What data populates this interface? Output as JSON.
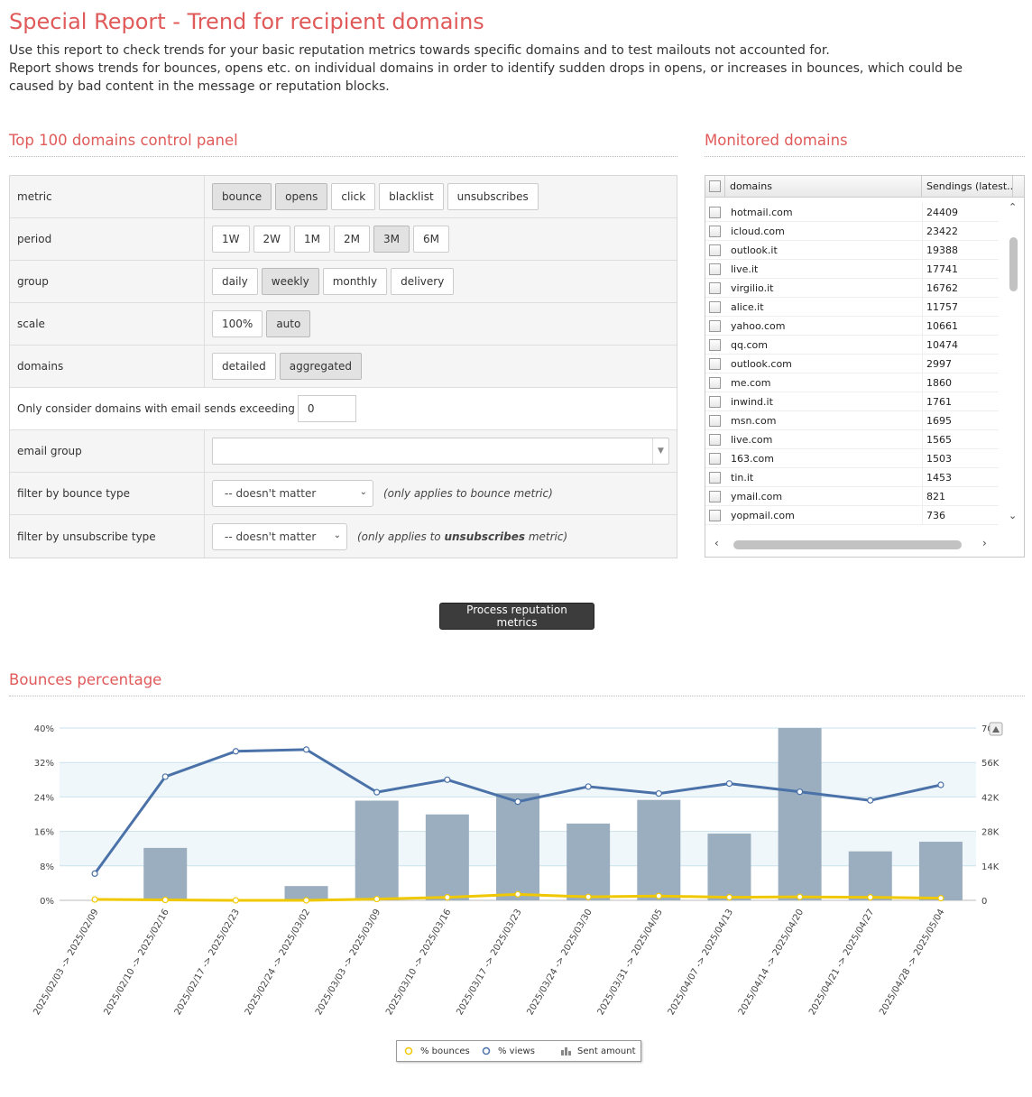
{
  "page": {
    "title": "Special Report - Trend for recipient domains",
    "intro_line1": "Use this report to check trends for your basic reputation metrics towards specific domains and to test mailouts not accounted for.",
    "intro_line2": "Report shows trends for bounces, opens etc. on individual domains in order to identify sudden drops in opens, or increases in bounces, which could be caused by bad content in the message or reputation blocks."
  },
  "control_panel": {
    "heading": "Top 100 domains control panel",
    "rows": {
      "metric": {
        "label": "metric",
        "options": [
          "bounce",
          "opens",
          "click",
          "blacklist",
          "unsubscribes"
        ],
        "active": [
          "bounce",
          "opens"
        ]
      },
      "period": {
        "label": "period",
        "options": [
          "1W",
          "2W",
          "1M",
          "2M",
          "3M",
          "6M"
        ],
        "active": [
          "3M"
        ]
      },
      "group": {
        "label": "group",
        "options": [
          "daily",
          "weekly",
          "monthly",
          "delivery"
        ],
        "active": [
          "weekly"
        ]
      },
      "scale": {
        "label": "scale",
        "options": [
          "100%",
          "auto"
        ],
        "active": [
          "auto"
        ]
      },
      "domains": {
        "label": "domains",
        "options": [
          "detailed",
          "aggregated"
        ],
        "active": [
          "aggregated"
        ]
      }
    },
    "min_sends_label": "Only consider domains with email sends exceeding",
    "min_sends_value": "0",
    "email_group_label": "email group",
    "email_group_value": "",
    "bounce_filter_label": "filter by bounce type",
    "bounce_filter_value": "-- doesn't matter",
    "bounce_hint_pre": "(only applies to",
    "bounce_hint_word": "bounce",
    "bounce_hint_post": "metric)",
    "unsub_filter_label": "filter by unsubscribe type",
    "unsub_filter_value": "-- doesn't matter",
    "unsub_hint_pre": "(only applies to",
    "unsub_hint_word": "unsubscribes",
    "unsub_hint_post": "metric)"
  },
  "monitored": {
    "heading": "Monitored domains",
    "col_domains": "domains",
    "col_sendings": "Sendings (latest...",
    "rows": [
      {
        "domain": "hotmail.com",
        "sendings": "24409"
      },
      {
        "domain": "icloud.com",
        "sendings": "23422"
      },
      {
        "domain": "outlook.it",
        "sendings": "19388"
      },
      {
        "domain": "live.it",
        "sendings": "17741"
      },
      {
        "domain": "virgilio.it",
        "sendings": "16762"
      },
      {
        "domain": "alice.it",
        "sendings": "11757"
      },
      {
        "domain": "yahoo.com",
        "sendings": "10661"
      },
      {
        "domain": "qq.com",
        "sendings": "10474"
      },
      {
        "domain": "outlook.com",
        "sendings": "2997"
      },
      {
        "domain": "me.com",
        "sendings": "1860"
      },
      {
        "domain": "inwind.it",
        "sendings": "1761"
      },
      {
        "domain": "msn.com",
        "sendings": "1695"
      },
      {
        "domain": "live.com",
        "sendings": "1565"
      },
      {
        "domain": "163.com",
        "sendings": "1503"
      },
      {
        "domain": "tin.it",
        "sendings": "1453"
      },
      {
        "domain": "ymail.com",
        "sendings": "821"
      },
      {
        "domain": "yopmail.com",
        "sendings": "736"
      }
    ]
  },
  "process_button": "Process reputation metrics",
  "chart_section": {
    "heading": "Bounces percentage"
  },
  "colors": {
    "accent": "#e05a5a",
    "views": "#4a72a8",
    "bounces": "#f0c800",
    "sent": "#9aaec0"
  },
  "chart_data": {
    "type": "bar",
    "categories": [
      "2025/02/03 -> 2025/02/09",
      "2025/02/10 -> 2025/02/16",
      "2025/02/17 -> 2025/02/23",
      "2025/02/24 -> 2025/03/02",
      "2025/03/03 -> 2025/03/09",
      "2025/03/10 -> 2025/03/16",
      "2025/03/17 -> 2025/03/23",
      "2025/03/24 -> 2025/03/30",
      "2025/03/31 -> 2025/04/05",
      "2025/04/07 -> 2025/04/13",
      "2025/04/14 -> 2025/04/20",
      "2025/04/21 -> 2025/04/27",
      "2025/04/28 -> 2025/05/04"
    ],
    "series": [
      {
        "name": "% bounces",
        "kind": "line",
        "axis": "left",
        "values": [
          0.2,
          0.1,
          0.0,
          0.0,
          0.3,
          0.7,
          1.4,
          0.8,
          1.0,
          0.7,
          0.8,
          0.7,
          0.5
        ]
      },
      {
        "name": "% views",
        "kind": "line",
        "axis": "left",
        "values": [
          6.2,
          28.7,
          34.6,
          35.0,
          25.1,
          28.0,
          22.9,
          26.4,
          24.8,
          27.1,
          25.2,
          23.2,
          26.8
        ]
      },
      {
        "name": "Sent amount",
        "kind": "bar",
        "axis": "right",
        "values": [
          0,
          21300,
          0,
          5800,
          40500,
          34900,
          43500,
          31200,
          40800,
          27100,
          70000,
          19900,
          23800
        ]
      }
    ],
    "y_left": {
      "ticks": [
        "0%",
        "8%",
        "16%",
        "24%",
        "32%",
        "40%"
      ],
      "range": [
        0,
        40
      ]
    },
    "y_right": {
      "ticks": [
        "0",
        "14K",
        "28K",
        "42K",
        "56K",
        "70K"
      ],
      "range": [
        0,
        70000
      ]
    },
    "grid": true,
    "legend_position": "bottom"
  }
}
